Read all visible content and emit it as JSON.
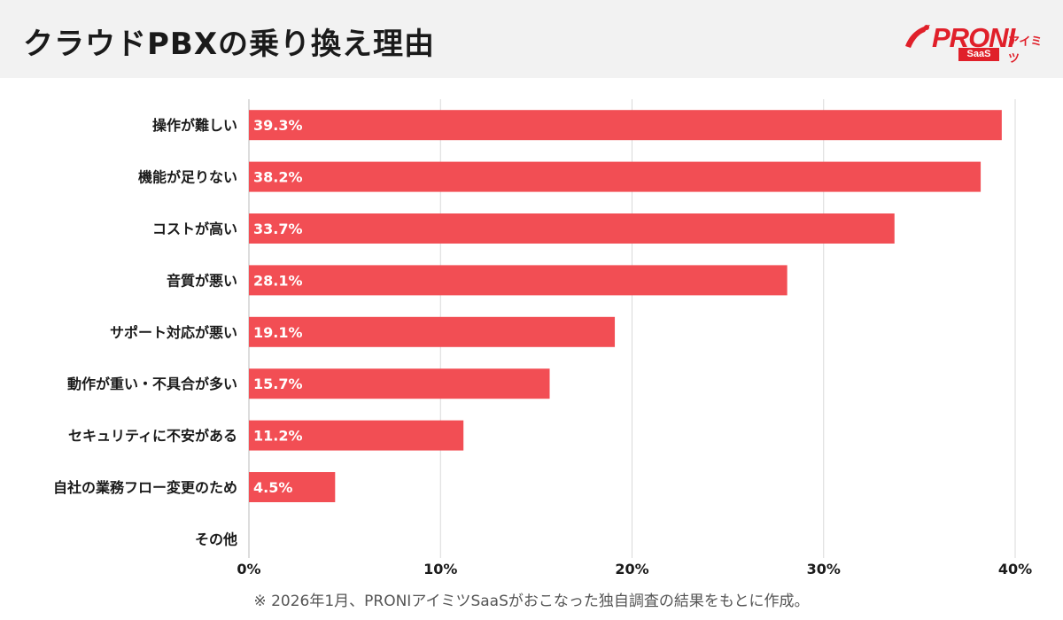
{
  "title": "クラウドPBXの乗り換え理由",
  "logo": {
    "name": "PRONI",
    "suffix": "アイミツ",
    "badge": "SaaS"
  },
  "colors": {
    "bar": "#f24e54",
    "grid": "#d9d9d9",
    "text": "#1a1a1a",
    "logo": "#e0202a"
  },
  "note": "※ 2026年1月、PRONIアイミツSaaSがおこなった独自調査の結果をもとに作成。",
  "chart_data": {
    "type": "bar",
    "orientation": "horizontal",
    "categories": [
      "操作が難しい",
      "機能が足りない",
      "コストが高い",
      "音質が悪い",
      "サポート対応が悪い",
      "動作が重い・不具合が多い",
      "セキュリティに不安がある",
      "自社の業務フロー変更のため",
      "その他"
    ],
    "values": [
      39.3,
      38.2,
      33.7,
      28.1,
      19.1,
      15.7,
      11.2,
      4.5,
      0
    ],
    "value_labels": [
      "39.3%",
      "38.2%",
      "33.7%",
      "28.1%",
      "19.1%",
      "15.7%",
      "11.2%",
      "4.5%",
      ""
    ],
    "xlim": [
      0,
      40
    ],
    "xticks": [
      0,
      10,
      20,
      30,
      40
    ],
    "xtick_labels": [
      "0%",
      "10%",
      "20%",
      "30%",
      "40%"
    ],
    "grid": true
  }
}
